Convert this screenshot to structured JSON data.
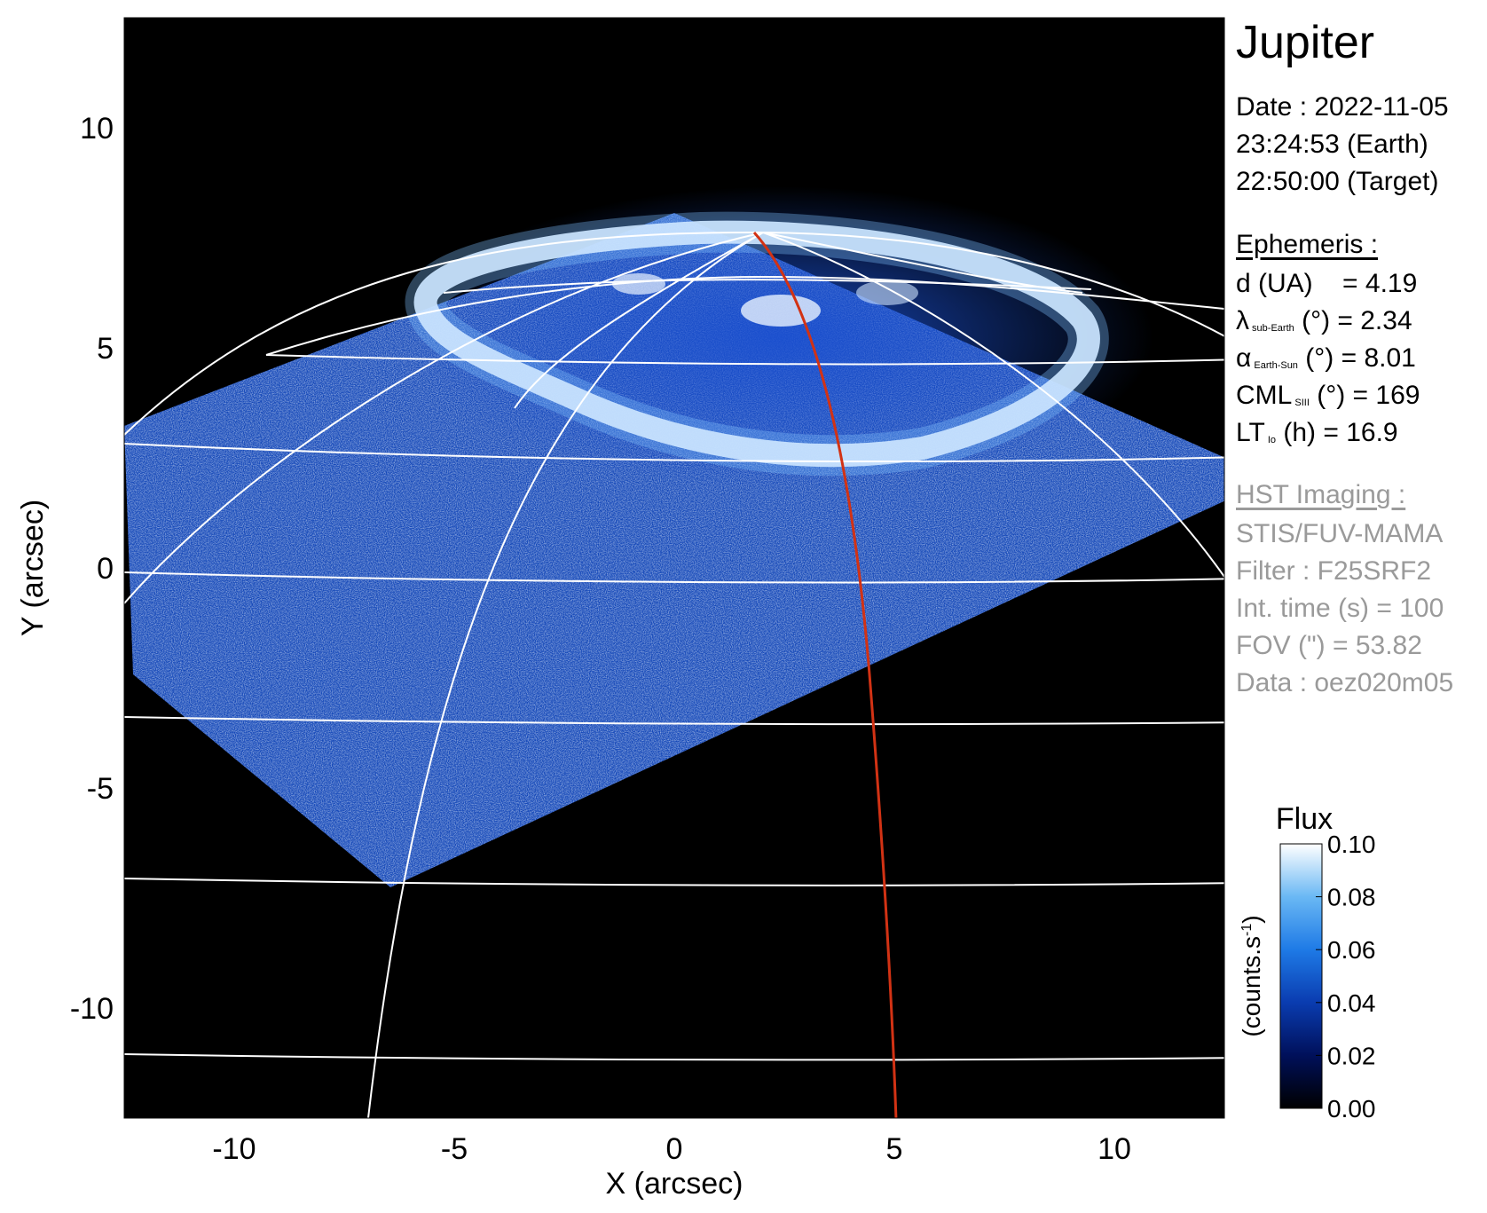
{
  "title": "Jupiter",
  "date": {
    "line1": "Date : 2022-11-05",
    "line2": "23:24:53 (Earth)",
    "line3": "22:50:00 (Target)"
  },
  "ephemeris": {
    "heading": "Ephemeris :",
    "rows": [
      {
        "main": "d (UA)",
        "sub": "",
        "unit": "",
        "value": "= 4.19"
      },
      {
        "main": "λ",
        "sub": "sub-Earth",
        "unit": "(°)",
        "value": "= 2.34"
      },
      {
        "main": "α",
        "sub": "Earth-Sun",
        "unit": "(°)",
        "value": "= 8.01"
      },
      {
        "main": "CML",
        "sub": "SIII",
        "unit": "(°)",
        "value": "= 169"
      },
      {
        "main": "LT",
        "sub": "Io",
        "unit": "(h)",
        "value": "= 16.9"
      }
    ]
  },
  "hst": {
    "heading": "HST Imaging :",
    "lines": [
      "STIS/FUV-MAMA",
      "Filter : F25SRF2",
      "Int. time (s) = 100",
      "FOV (\") = 53.82",
      "Data : oez020m05"
    ]
  },
  "chart_data": {
    "type": "heatmap",
    "title": "Jupiter",
    "xlabel": "X (arcsec)",
    "ylabel": "Y (arcsec)",
    "xlim": [
      -12.5,
      12.5
    ],
    "ylim": [
      -12.5,
      12.5
    ],
    "xticks": [
      -10,
      -5,
      0,
      5,
      10
    ],
    "yticks": [
      -10,
      -5,
      0,
      5,
      10
    ],
    "colorbar": {
      "title": "Flux",
      "label": "(counts.s",
      "label_sup": "-1",
      "label_end": ")",
      "ticks": [
        0.0,
        0.02,
        0.04,
        0.06,
        0.08,
        0.1
      ],
      "tick_labels": [
        "0.00",
        "0.02",
        "0.04",
        "0.06",
        "0.08",
        "0.10"
      ],
      "range": [
        0.0,
        0.1
      ],
      "colormap": [
        "#000000",
        "#00105a",
        "#0a3cb0",
        "#1e7ae6",
        "#6ab8f4",
        "#ffffff"
      ]
    },
    "colors": {
      "background": "#000000",
      "grid": "#ffffff",
      "reference_meridian": "#d23214"
    }
  }
}
